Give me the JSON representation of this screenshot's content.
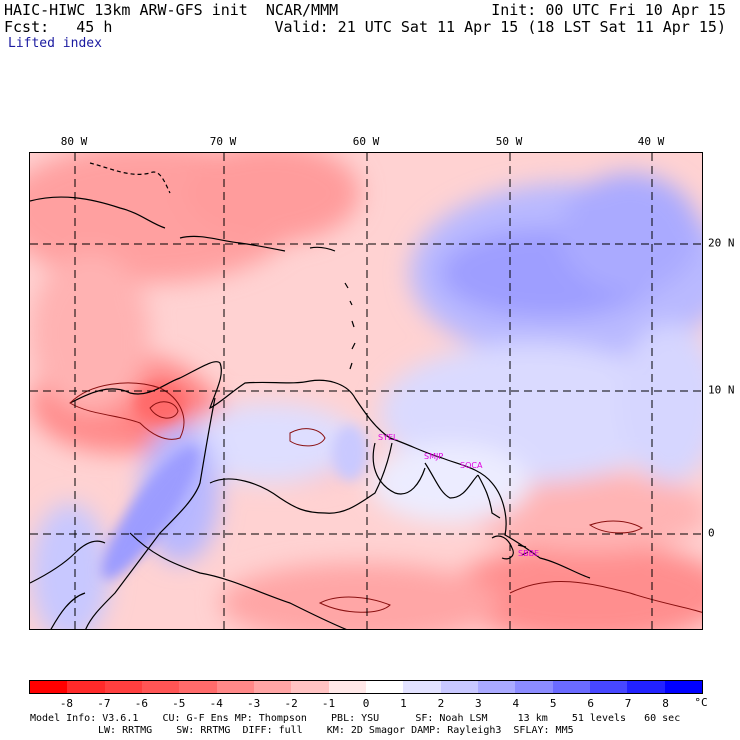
{
  "header": {
    "title_left": "HAIC-HIWC 13km ARW-GFS init  NCAR/MMM",
    "fcst": "Fcst:   45 h",
    "field": "Lifted index",
    "init": "Init: 00 UTC Fri 10 Apr 15",
    "valid": "Valid: 21 UTC Sat 11 Apr 15 (18 LST Sat 11 Apr 15)"
  },
  "axes": {
    "lon_labels": [
      "80 W",
      "70 W",
      "60 W",
      "50 W",
      "40 W"
    ],
    "lat_labels": [
      "20 N",
      "10 N",
      "0"
    ]
  },
  "sites": [
    {
      "label": "SYEL"
    },
    {
      "label": "SMJP"
    },
    {
      "label": "SOCA"
    },
    {
      "label": "SBBE"
    }
  ],
  "colorbar": {
    "labels": [
      "-8",
      "-7",
      "-6",
      "-5",
      "-4",
      "-3",
      "-2",
      "-1",
      "0",
      "1",
      "2",
      "3",
      "4",
      "5",
      "6",
      "7",
      "8"
    ],
    "unit": "°C",
    "colors": [
      "#ff0000",
      "#ff2a2a",
      "#ff3f3f",
      "#ff5555",
      "#ff6b6b",
      "#ff8888",
      "#ffa5a5",
      "#ffc3c3",
      "#ffe8e8",
      "#ffffff",
      "#e2e2ff",
      "#c8c8ff",
      "#aaaaff",
      "#8c8cff",
      "#6b6bff",
      "#4747ff",
      "#2222ff",
      "#0000ff"
    ]
  },
  "footer": {
    "line1": "Model Info: V3.6.1    CU: G-F Ens MP: Thompson    PBL: YSU      SF: Noah LSM     13 km    51 levels   60 sec",
    "line2": "LW: RRTMG    SW: RRTMG  DIFF: full    KM: 2D Smagor DAMP: Rayleigh3  SFLAY: MM5"
  }
}
